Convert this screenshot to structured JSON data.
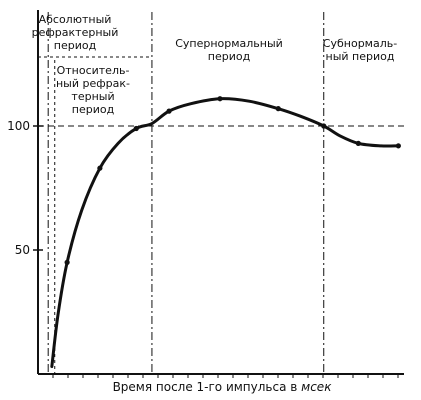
{
  "chart_data": {
    "type": "line",
    "title": "",
    "xlabel_parts": [
      "Время после 1-го импульса в ",
      "мсек"
    ],
    "ylabel": "",
    "yticks": [
      "100",
      "50"
    ],
    "ylim": [
      0,
      125
    ],
    "xlim": [
      0,
      100
    ],
    "reference_line": 100,
    "phase_boundaries": [
      2.8,
      31.3,
      78.5
    ],
    "relative_refractory_start": 4.6,
    "regions": [
      {
        "name": "absolute_refractory",
        "lines": [
          "Абсолютный",
          "рефрактерный",
          "период"
        ]
      },
      {
        "name": "relative_refractory",
        "lines": [
          "Относитель-",
          "ный рефрак-",
          "терный",
          "период"
        ]
      },
      {
        "name": "supernormal",
        "lines": [
          "Супернормальный",
          "период"
        ]
      },
      {
        "name": "subnormal",
        "lines": [
          "Субнормаль-",
          "ный период"
        ]
      }
    ],
    "series": [
      {
        "x": [
          3.8,
          5.5,
          8,
          12,
          17,
          22,
          27,
          31.3,
          36,
          42,
          50,
          58,
          66,
          72,
          78.5,
          83,
          88,
          94,
          99
        ],
        "y": [
          3,
          24,
          45,
          66,
          83,
          93,
          99,
          101,
          106,
          109,
          111,
          110,
          107,
          104,
          100,
          96,
          93,
          92,
          92
        ]
      }
    ]
  }
}
